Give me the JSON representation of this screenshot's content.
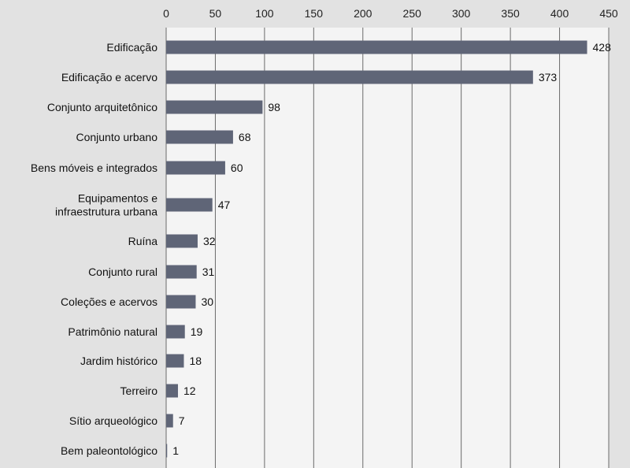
{
  "chart_data": {
    "type": "bar",
    "orientation": "horizontal",
    "categories": [
      [
        "Edificação"
      ],
      [
        "Edificação e acervo"
      ],
      [
        "Conjunto arquitetônico"
      ],
      [
        "Conjunto urbano"
      ],
      [
        "Bens móveis e integrados"
      ],
      [
        "Equipamentos e",
        "infraestrutura urbana"
      ],
      [
        "Ruína"
      ],
      [
        "Conjunto rural"
      ],
      [
        "Coleções e acervos"
      ],
      [
        "Patrimônio natural"
      ],
      [
        "Jardim histórico"
      ],
      [
        "Terreiro"
      ],
      [
        "Sítio arqueológico"
      ],
      [
        "Bem paleontológico"
      ]
    ],
    "values": [
      428,
      373,
      98,
      68,
      60,
      47,
      32,
      31,
      30,
      19,
      18,
      12,
      7,
      1
    ],
    "xlim": [
      0,
      450
    ],
    "xticks": [
      0,
      50,
      100,
      150,
      200,
      250,
      300,
      350,
      400,
      450
    ],
    "xaxis_position": "top",
    "grid": true,
    "colors": {
      "background": "#e2e2e2",
      "plot_area": "#f4f4f4",
      "bar": "#5f6577",
      "grid": "#6a6a6a",
      "text": "#111111"
    }
  }
}
